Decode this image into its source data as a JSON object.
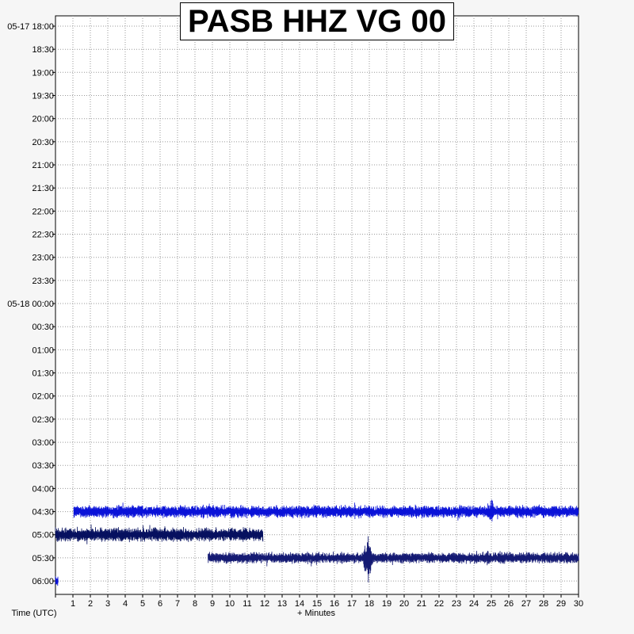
{
  "chart_data": {
    "type": "line",
    "title": "PASB HHZ VG 00",
    "xlabel": "+ Minutes",
    "ylabel": "Time (UTC)",
    "xlim": [
      0,
      30
    ],
    "x_ticks": [
      "1",
      "2",
      "3",
      "4",
      "5",
      "6",
      "7",
      "8",
      "9",
      "10",
      "11",
      "12",
      "13",
      "14",
      "15",
      "16",
      "17",
      "18",
      "19",
      "20",
      "21",
      "22",
      "23",
      "24",
      "25",
      "26",
      "27",
      "28",
      "29",
      "30"
    ],
    "y_ticks": [
      "05-17 18:00",
      "18:30",
      "19:00",
      "19:30",
      "20:00",
      "20:30",
      "21:00",
      "21:30",
      "22:00",
      "22:30",
      "23:00",
      "23:30",
      "05-18 00:00",
      "00:30",
      "01:00",
      "01:30",
      "02:00",
      "02:30",
      "03:00",
      "03:30",
      "04:00",
      "04:30",
      "05:00",
      "05:30",
      "06:00"
    ],
    "grid": true,
    "colors": {
      "background": "#ffffff",
      "grid": "#9a9a9a",
      "trace_blue": "#0a12d8",
      "trace_darkblue": "#06105f",
      "trace_navy": "#141a73"
    },
    "traces": [
      {
        "row": "04:30",
        "start_min": 1.05,
        "end_min": 30,
        "amplitude": 9,
        "color": "#0a12d8",
        "events": [
          {
            "at_min": 25.0,
            "amplitude": 18
          }
        ]
      },
      {
        "row": "05:00",
        "start_min": 0,
        "end_min": 11.9,
        "amplitude": 10,
        "color": "#06105f",
        "events": [
          {
            "at_min": 6.3,
            "amplitude": 13
          }
        ]
      },
      {
        "row": "05:30",
        "start_min": 8.75,
        "end_min": 30,
        "amplitude": 8,
        "color": "#141a73",
        "events": [
          {
            "at_min": 17.9,
            "amplitude": 36
          },
          {
            "at_min": 24.8,
            "amplitude": 12
          }
        ]
      },
      {
        "row": "06:00",
        "start_min": 0,
        "end_min": 0.15,
        "amplitude": 8,
        "color": "#0a12d8",
        "events": []
      }
    ]
  }
}
